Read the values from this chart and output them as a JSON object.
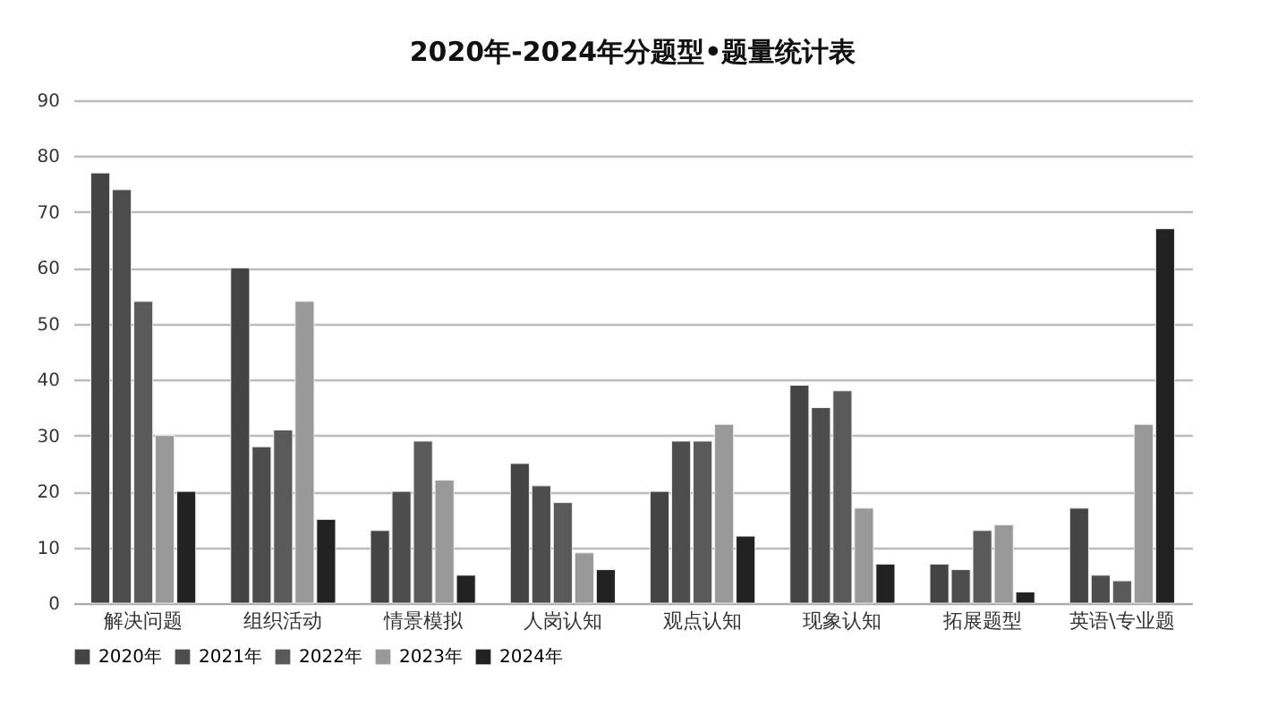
{
  "chart_data": {
    "type": "bar",
    "title": "2020年-2024年分题型•题量统计表",
    "categories": [
      "解决问题",
      "组织活动",
      "情景模拟",
      "人岗认知",
      "观点认知",
      "现象认知",
      "拓展题型",
      "英语\\专业题"
    ],
    "series": [
      {
        "name": "2020年",
        "color": "#444444",
        "values": [
          77,
          60,
          13,
          25,
          20,
          39,
          7,
          17
        ]
      },
      {
        "name": "2021年",
        "color": "#4d4d4d",
        "values": [
          74,
          28,
          20,
          21,
          29,
          35,
          6,
          5
        ]
      },
      {
        "name": "2022年",
        "color": "#5a5a5a",
        "values": [
          54,
          31,
          29,
          18,
          29,
          38,
          13,
          4
        ]
      },
      {
        "name": "2023年",
        "color": "#999999",
        "values": [
          30,
          54,
          22,
          9,
          32,
          17,
          14,
          32
        ]
      },
      {
        "name": "2024年",
        "color": "#222222",
        "values": [
          20,
          15,
          5,
          6,
          12,
          7,
          2,
          67
        ]
      }
    ],
    "ylim": [
      0,
      90
    ],
    "yticks": [
      0,
      10,
      20,
      30,
      40,
      50,
      60,
      70,
      80,
      90
    ],
    "grid": "y",
    "legend": "bottom"
  }
}
